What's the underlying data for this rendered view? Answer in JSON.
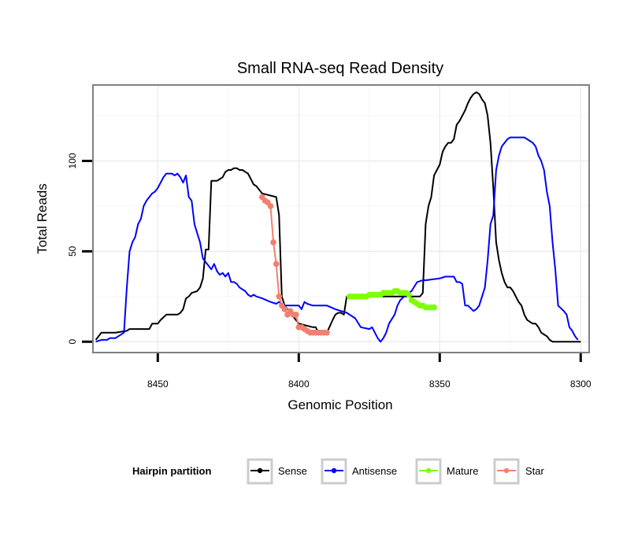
{
  "chart_data": {
    "type": "line",
    "title": "Small RNA-seq Read Density",
    "xlabel": "Genomic Position",
    "ylabel": "Total Reads",
    "xlim": [
      8473,
      8297
    ],
    "ylim": [
      -6,
      142
    ],
    "x_ticks": [
      8450,
      8400,
      8350,
      8300
    ],
    "x_tick_labels": [
      "8450",
      "8400",
      "8350",
      "8300"
    ],
    "y_ticks": [
      0,
      50,
      100
    ],
    "y_tick_labels": [
      "0",
      "50",
      "100"
    ],
    "grid": true,
    "legend": {
      "title": "Hairpin partition",
      "placement": "bottom",
      "entries": [
        {
          "name": "Sense",
          "color": "#000000"
        },
        {
          "name": "Antisense",
          "color": "#0000ff"
        },
        {
          "name": "Mature",
          "color": "#7fff00"
        },
        {
          "name": "Star",
          "color": "#f08070"
        }
      ]
    },
    "series": [
      {
        "name": "Sense",
        "color": "#000000",
        "style": "line",
        "points": [
          [
            8472,
            1
          ],
          [
            8470,
            5
          ],
          [
            8465,
            5
          ],
          [
            8461,
            6
          ],
          [
            8460,
            7
          ],
          [
            8458,
            7
          ],
          [
            8453,
            7
          ],
          [
            8452,
            10
          ],
          [
            8450,
            10
          ],
          [
            8449,
            12
          ],
          [
            8447,
            15
          ],
          [
            8445,
            15
          ],
          [
            8443,
            15
          ],
          [
            8442,
            16
          ],
          [
            8441,
            18
          ],
          [
            8440,
            24
          ],
          [
            8439,
            25
          ],
          [
            8438,
            27
          ],
          [
            8436,
            28
          ],
          [
            8435,
            30
          ],
          [
            8434,
            35
          ],
          [
            8433,
            51
          ],
          [
            8432,
            51
          ],
          [
            8431,
            89
          ],
          [
            8430,
            89
          ],
          [
            8429,
            89
          ],
          [
            8428,
            90
          ],
          [
            8427,
            91
          ],
          [
            8426,
            94
          ],
          [
            8425,
            95
          ],
          [
            8424,
            95
          ],
          [
            8423,
            96
          ],
          [
            8422,
            96
          ],
          [
            8421,
            95
          ],
          [
            8420,
            95
          ],
          [
            8419,
            94
          ],
          [
            8418,
            93
          ],
          [
            8417,
            90
          ],
          [
            8416,
            87
          ],
          [
            8415,
            86
          ],
          [
            8414,
            84
          ],
          [
            8413,
            82
          ],
          [
            8408,
            80
          ],
          [
            8407,
            70
          ],
          [
            8406,
            25
          ],
          [
            8405,
            20
          ],
          [
            8400,
            10
          ],
          [
            8395,
            8
          ],
          [
            8394,
            8
          ],
          [
            8393,
            5
          ],
          [
            8392,
            5
          ],
          [
            8390,
            5
          ],
          [
            8388,
            12
          ],
          [
            8387,
            15
          ],
          [
            8386,
            16
          ],
          [
            8385,
            16
          ],
          [
            8384,
            15
          ],
          [
            8383,
            25
          ],
          [
            8382,
            25
          ],
          [
            8357,
            25
          ],
          [
            8356,
            27
          ],
          [
            8355,
            65
          ],
          [
            8354,
            75
          ],
          [
            8353,
            80
          ],
          [
            8352,
            92
          ],
          [
            8351,
            95
          ],
          [
            8350,
            98
          ],
          [
            8349,
            105
          ],
          [
            8348,
            108
          ],
          [
            8347,
            110
          ],
          [
            8346,
            110
          ],
          [
            8345,
            112
          ],
          [
            8344,
            120
          ],
          [
            8343,
            122
          ],
          [
            8342,
            125
          ],
          [
            8341,
            128
          ],
          [
            8340,
            132
          ],
          [
            8339,
            135
          ],
          [
            8338,
            137
          ],
          [
            8337,
            138
          ],
          [
            8336,
            137
          ],
          [
            8335,
            134
          ],
          [
            8334,
            132
          ],
          [
            8333,
            125
          ],
          [
            8332,
            110
          ],
          [
            8331,
            85
          ],
          [
            8330,
            55
          ],
          [
            8329,
            45
          ],
          [
            8328,
            38
          ],
          [
            8327,
            33
          ],
          [
            8326,
            30
          ],
          [
            8325,
            30
          ],
          [
            8324,
            28
          ],
          [
            8323,
            25
          ],
          [
            8322,
            22
          ],
          [
            8321,
            20
          ],
          [
            8320,
            15
          ],
          [
            8319,
            12
          ],
          [
            8318,
            11
          ],
          [
            8317,
            10
          ],
          [
            8316,
            10
          ],
          [
            8315,
            8
          ],
          [
            8314,
            5
          ],
          [
            8313,
            4
          ],
          [
            8312,
            3
          ],
          [
            8311,
            1
          ],
          [
            8310,
            0
          ],
          [
            8305,
            0
          ],
          [
            8300,
            0
          ]
        ]
      },
      {
        "name": "Antisense",
        "color": "#0000ff",
        "style": "line",
        "points": [
          [
            8472,
            0
          ],
          [
            8470,
            1
          ],
          [
            8469,
            1
          ],
          [
            8468,
            1
          ],
          [
            8467,
            2
          ],
          [
            8465,
            2
          ],
          [
            8464,
            3
          ],
          [
            8462,
            5
          ],
          [
            8461,
            30
          ],
          [
            8460,
            50
          ],
          [
            8459,
            55
          ],
          [
            8458,
            58
          ],
          [
            8457,
            65
          ],
          [
            8456,
            68
          ],
          [
            8455,
            75
          ],
          [
            8454,
            78
          ],
          [
            8453,
            80
          ],
          [
            8452,
            82
          ],
          [
            8451,
            83
          ],
          [
            8450,
            85
          ],
          [
            8449,
            88
          ],
          [
            8448,
            91
          ],
          [
            8447,
            93
          ],
          [
            8446,
            93
          ],
          [
            8445,
            93
          ],
          [
            8444,
            92
          ],
          [
            8443,
            93
          ],
          [
            8442,
            91
          ],
          [
            8441,
            88
          ],
          [
            8440,
            92
          ],
          [
            8439,
            80
          ],
          [
            8438,
            78
          ],
          [
            8437,
            65
          ],
          [
            8436,
            60
          ],
          [
            8435,
            55
          ],
          [
            8434,
            46
          ],
          [
            8433,
            44
          ],
          [
            8432,
            42
          ],
          [
            8431,
            40
          ],
          [
            8430,
            43
          ],
          [
            8429,
            39
          ],
          [
            8428,
            37
          ],
          [
            8427,
            38
          ],
          [
            8426,
            36
          ],
          [
            8425,
            38
          ],
          [
            8424,
            33
          ],
          [
            8423,
            33
          ],
          [
            8422,
            32
          ],
          [
            8421,
            30
          ],
          [
            8420,
            29
          ],
          [
            8419,
            28
          ],
          [
            8418,
            26
          ],
          [
            8417,
            25
          ],
          [
            8416,
            26
          ],
          [
            8415,
            25
          ],
          [
            8413,
            24
          ],
          [
            8410,
            22
          ],
          [
            8408,
            21
          ],
          [
            8407,
            22
          ],
          [
            8405,
            20
          ],
          [
            8400,
            20
          ],
          [
            8399,
            18
          ],
          [
            8398,
            22
          ],
          [
            8397,
            21
          ],
          [
            8395,
            20
          ],
          [
            8390,
            20
          ],
          [
            8387,
            18
          ],
          [
            8383,
            16
          ],
          [
            8380,
            13
          ],
          [
            8378,
            8
          ],
          [
            8375,
            7
          ],
          [
            8374,
            8
          ],
          [
            8372,
            2
          ],
          [
            8371,
            0
          ],
          [
            8370,
            2
          ],
          [
            8369,
            5
          ],
          [
            8368,
            10
          ],
          [
            8366,
            15
          ],
          [
            8365,
            20
          ],
          [
            8364,
            23
          ],
          [
            8362,
            26
          ],
          [
            8360,
            28
          ],
          [
            8358,
            33
          ],
          [
            8356,
            34
          ],
          [
            8355,
            34
          ],
          [
            8350,
            35
          ],
          [
            8348,
            36
          ],
          [
            8345,
            36
          ],
          [
            8344,
            33
          ],
          [
            8343,
            33
          ],
          [
            8342,
            32
          ],
          [
            8341,
            20
          ],
          [
            8340,
            20
          ],
          [
            8338,
            17
          ],
          [
            8337,
            18
          ],
          [
            8336,
            20
          ],
          [
            8335,
            25
          ],
          [
            8334,
            30
          ],
          [
            8333,
            45
          ],
          [
            8332,
            65
          ],
          [
            8331,
            70
          ],
          [
            8330,
            95
          ],
          [
            8329,
            103
          ],
          [
            8328,
            108
          ],
          [
            8327,
            110
          ],
          [
            8326,
            112
          ],
          [
            8325,
            113
          ],
          [
            8324,
            113
          ],
          [
            8322,
            113
          ],
          [
            8320,
            113
          ],
          [
            8319,
            112
          ],
          [
            8317,
            110
          ],
          [
            8316,
            108
          ],
          [
            8315,
            103
          ],
          [
            8314,
            100
          ],
          [
            8313,
            95
          ],
          [
            8312,
            83
          ],
          [
            8311,
            75
          ],
          [
            8310,
            55
          ],
          [
            8309,
            40
          ],
          [
            8308,
            20
          ],
          [
            8306,
            17
          ],
          [
            8305,
            15
          ],
          [
            8304,
            8
          ],
          [
            8303,
            6
          ],
          [
            8302,
            3
          ],
          [
            8301,
            1
          ]
        ]
      },
      {
        "name": "Mature",
        "color": "#7fff00",
        "style": "line+points",
        "points": [
          [
            8382,
            25
          ],
          [
            8381,
            25
          ],
          [
            8380,
            25
          ],
          [
            8379,
            25
          ],
          [
            8378,
            25
          ],
          [
            8377,
            25
          ],
          [
            8376,
            25
          ],
          [
            8375,
            26
          ],
          [
            8374,
            26
          ],
          [
            8373,
            26
          ],
          [
            8372,
            26
          ],
          [
            8371,
            26
          ],
          [
            8370,
            27
          ],
          [
            8369,
            27
          ],
          [
            8368,
            27
          ],
          [
            8367,
            27
          ],
          [
            8366,
            28
          ],
          [
            8365,
            28
          ],
          [
            8364,
            27
          ],
          [
            8363,
            27
          ],
          [
            8362,
            27
          ],
          [
            8361,
            26
          ],
          [
            8360,
            23
          ],
          [
            8359,
            22
          ],
          [
            8358,
            21
          ],
          [
            8357,
            20
          ],
          [
            8356,
            20
          ],
          [
            8355,
            19
          ],
          [
            8354,
            19
          ],
          [
            8353,
            19
          ],
          [
            8352,
            19
          ]
        ]
      },
      {
        "name": "Star",
        "color": "#f08070",
        "style": "line+points",
        "points": [
          [
            8413,
            80
          ],
          [
            8412,
            78
          ],
          [
            8411,
            77
          ],
          [
            8410,
            75
          ],
          [
            8409,
            55
          ],
          [
            8408,
            43
          ],
          [
            8407,
            25
          ],
          [
            8406,
            20
          ],
          [
            8405,
            18
          ],
          [
            8404,
            15
          ],
          [
            8403,
            17
          ],
          [
            8402,
            15
          ],
          [
            8401,
            15
          ],
          [
            8400,
            8
          ],
          [
            8399,
            8
          ],
          [
            8398,
            7
          ],
          [
            8397,
            6
          ],
          [
            8396,
            5
          ],
          [
            8395,
            5
          ],
          [
            8394,
            5
          ],
          [
            8393,
            5
          ],
          [
            8392,
            5
          ],
          [
            8391,
            5
          ],
          [
            8390,
            5
          ]
        ]
      }
    ]
  }
}
